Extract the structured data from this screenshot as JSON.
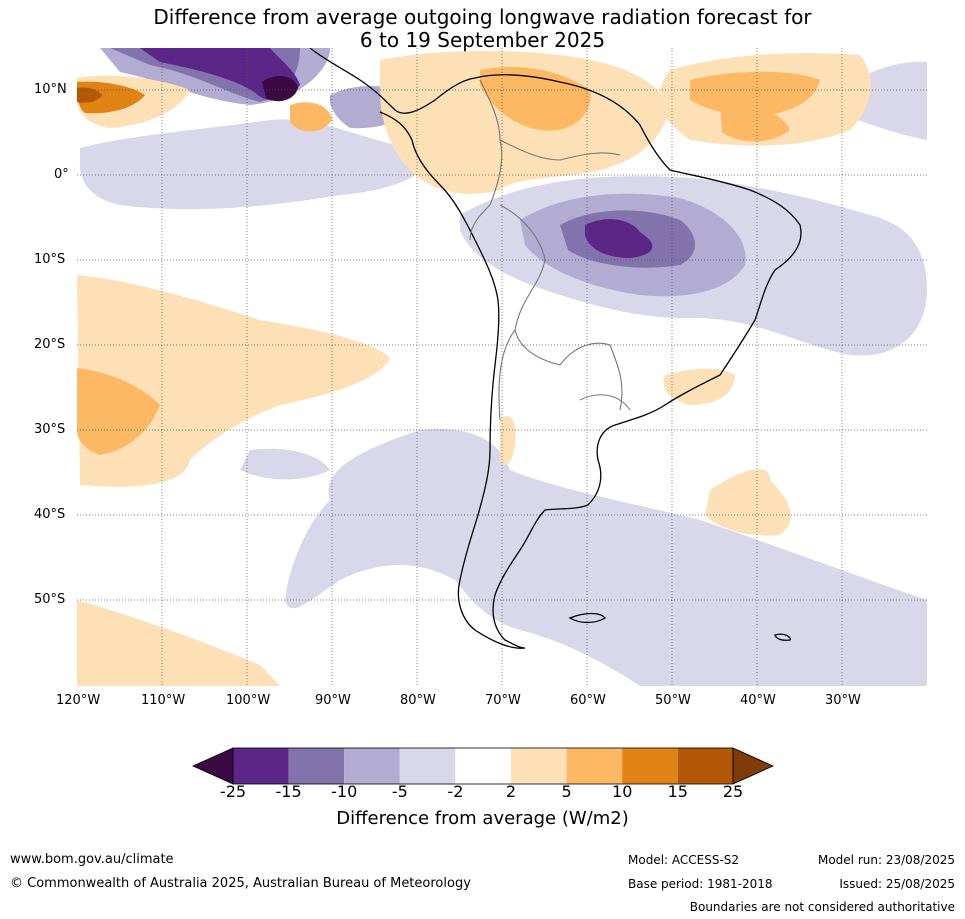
{
  "title": {
    "line1": "Difference from average outgoing longwave radiation forecast for",
    "line2": "6 to 19 September 2025"
  },
  "map": {
    "lat_labels": [
      "10°N",
      "0°",
      "10°S",
      "20°S",
      "30°S",
      "40°S",
      "50°S"
    ],
    "lon_labels": [
      "120°W",
      "110°W",
      "100°W",
      "90°W",
      "80°W",
      "70°W",
      "60°W",
      "50°W",
      "40°W",
      "30°W"
    ],
    "extent": {
      "lon": [
        -120,
        -20
      ],
      "lat": [
        -60,
        15
      ]
    },
    "graticule": "dotted"
  },
  "colorbar": {
    "tick_labels": [
      "-25",
      "-15",
      "-10",
      "-5",
      "-2",
      "2",
      "5",
      "10",
      "15",
      "25"
    ],
    "colors": [
      "#3b0a45",
      "#5b2688",
      "#8373ad",
      "#b2abd2",
      "#d8d8ea",
      "#ffffff",
      "#fee0b6",
      "#fdb863",
      "#e08214",
      "#b35806",
      "#7f3b08"
    ],
    "title": "Difference from average (W/m2)"
  },
  "footer": {
    "website": "www.bom.gov.au/climate",
    "copyright": "© Commonwealth of Australia 2025, Australian Bureau of Meteorology",
    "model": "Model: ACCESS-S2",
    "base_period": "Base period: 1981-2018",
    "model_run": "Model run: 23/08/2025",
    "issued": "Issued: 25/08/2025",
    "disclaimer": "Boundaries are not considered authoritative"
  }
}
